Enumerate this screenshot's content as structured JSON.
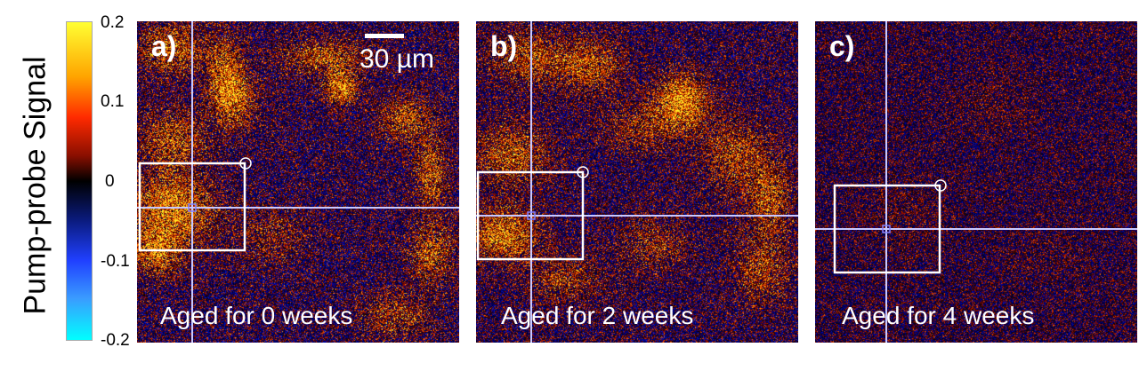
{
  "colorbar": {
    "title": "Pump-probe Signal",
    "ticks": [
      "0.2",
      "0.1",
      "0",
      "-0.1",
      "-0.2"
    ],
    "tick_values": [
      0.2,
      0.1,
      0,
      -0.1,
      -0.2
    ],
    "range": [
      -0.2,
      0.2
    ]
  },
  "scalebar": {
    "label": "30 µm"
  },
  "panels": [
    {
      "label": "a)",
      "caption": "Aged for 0 weeks"
    },
    {
      "label": "b)",
      "caption": "Aged for 2 weeks"
    },
    {
      "label": "c)",
      "caption": "Aged for 4 weeks"
    }
  ],
  "colors": {
    "crosshair": "#c8c8ff",
    "roi_box": "#ffffff",
    "hot": "#ffcc00",
    "cold": "#1a2ad0"
  }
}
